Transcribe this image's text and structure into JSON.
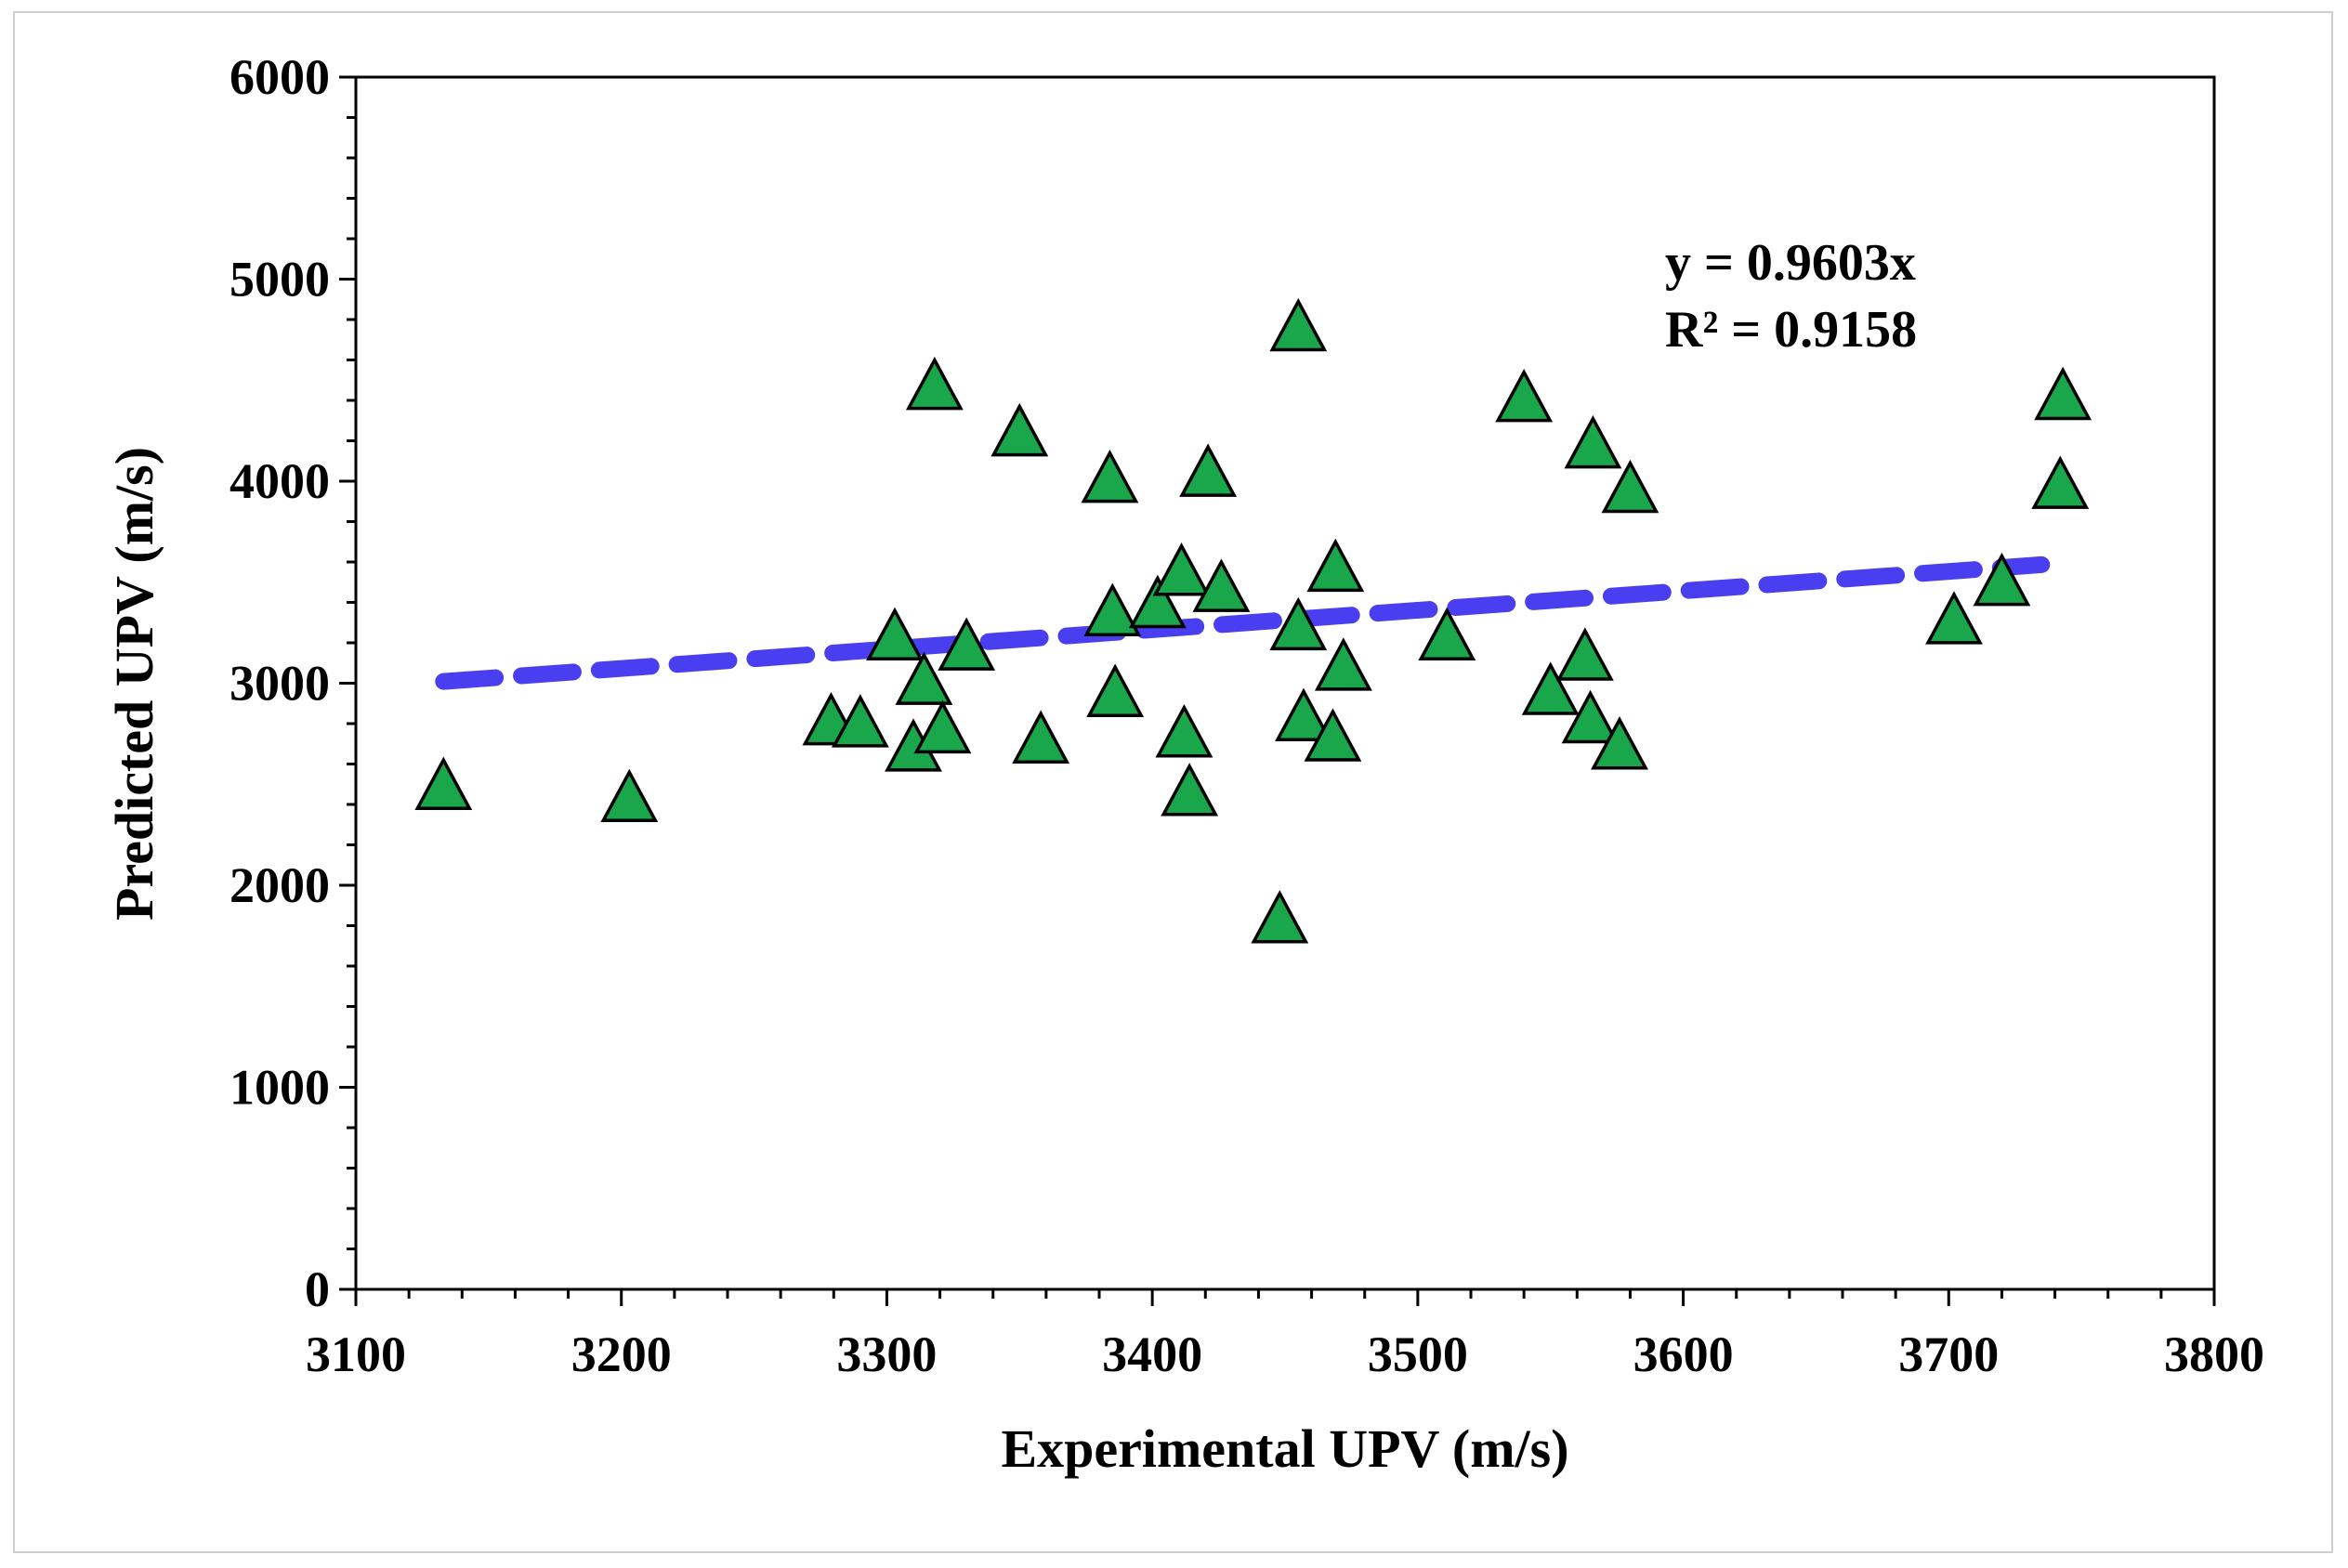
{
  "chart_data": {
    "type": "scatter",
    "title": "",
    "xlabel": "Experimental UPV (m/s)",
    "ylabel": "Predicted UPV (m/s)",
    "xlim": [
      3100,
      3800
    ],
    "ylim": [
      0,
      6000
    ],
    "x_ticks": [
      3100,
      3200,
      3300,
      3400,
      3500,
      3600,
      3700,
      3800
    ],
    "y_ticks": [
      0,
      1000,
      2000,
      3000,
      4000,
      5000,
      6000
    ],
    "x_tick_labels": [
      "3100",
      "3200",
      "3300",
      "3400",
      "3500",
      "3600",
      "3700",
      "3800"
    ],
    "y_tick_labels": [
      "0",
      "1000",
      "2000",
      "3000",
      "4000",
      "5000",
      "6000"
    ],
    "grid": false,
    "legend": "none",
    "series": [
      {
        "name": "Data",
        "marker": "triangle",
        "color": "#1aa64a",
        "edge_color": "#000000",
        "x": [
          3133,
          3203,
          3279,
          3290,
          3303,
          3310,
          3314,
          3318,
          3321,
          3330,
          3350,
          3358,
          3384,
          3385,
          3386,
          3402,
          3411,
          3412,
          3414,
          3421,
          3426,
          3448,
          3455,
          3455,
          3457,
          3468,
          3469,
          3472,
          3511,
          3540,
          3550,
          3563,
          3565,
          3566,
          3576,
          3580,
          3702,
          3720,
          3742,
          3743
        ],
        "y": [
          2500,
          2440,
          2820,
          2810,
          3240,
          2690,
          3020,
          4480,
          2780,
          3190,
          4250,
          2730,
          4020,
          3360,
          2960,
          3400,
          3560,
          2760,
          2470,
          4050,
          3480,
          1840,
          3290,
          4770,
          2840,
          2740,
          3580,
          3090,
          3240,
          4420,
          2970,
          3140,
          2830,
          4190,
          2700,
          3970,
          3320,
          3510,
          3990,
          4430
        ]
      },
      {
        "name": "Trendline",
        "type": "line",
        "style": "dashed",
        "color": "#4a3ff0",
        "slope": 0.9603,
        "x_range": [
          3133,
          3735
        ]
      }
    ],
    "annotations": [
      "y = 0.9603x",
      "R² = 0.9158"
    ]
  }
}
